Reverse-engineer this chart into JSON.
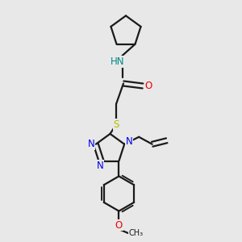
{
  "bg_color": "#e8e8e8",
  "bond_color": "#1a1a1a",
  "N_color": "#0000ee",
  "O_color": "#ee0000",
  "S_color": "#bbbb00",
  "NH_color": "#008888",
  "lw": 1.6,
  "fs": 8.5,
  "xlim": [
    0,
    10
  ],
  "ylim": [
    0,
    10
  ]
}
